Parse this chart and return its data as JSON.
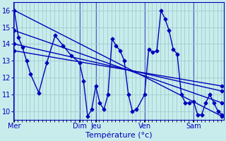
{
  "background_color": "#c8ecec",
  "grid_color": "#a0cccc",
  "line_color": "#0000bb",
  "marker": "D",
  "markersize": 2.5,
  "linewidth": 1.0,
  "xlabel": "Température (°c)",
  "ylim": [
    9.5,
    16.5
  ],
  "yticks": [
    10,
    11,
    12,
    13,
    14,
    15,
    16
  ],
  "xlim": [
    0,
    168
  ],
  "day_labels": [
    "Mer",
    "Dim",
    "Jeu",
    "Ven",
    "Sam"
  ],
  "day_positions": [
    1,
    97,
    121,
    193,
    265
  ],
  "minor_tick_step": 6,
  "temp_x": [
    1,
    7,
    13,
    19,
    25,
    37,
    49,
    61,
    73,
    85,
    97,
    103,
    109,
    115,
    121,
    127,
    133,
    139,
    145,
    151,
    157,
    163,
    169,
    175,
    181,
    193,
    199,
    205,
    211,
    217,
    223,
    229,
    235,
    241,
    247,
    253,
    259,
    265,
    271,
    277,
    283,
    289,
    295,
    301,
    307
  ],
  "temp_y": [
    16.0,
    14.4,
    13.8,
    13.0,
    12.2,
    11.1,
    12.9,
    14.5,
    13.9,
    13.3,
    12.9,
    11.8,
    9.7,
    10.1,
    11.5,
    10.5,
    10.1,
    11.0,
    14.3,
    13.9,
    13.6,
    13.0,
    11.0,
    10.0,
    10.1,
    11.0,
    13.7,
    13.5,
    13.6,
    16.0,
    15.5,
    14.8,
    13.7,
    13.4,
    11.0,
    10.5,
    10.5,
    10.6,
    9.8,
    9.8,
    10.5,
    11.0,
    10.5,
    10.0,
    9.8
  ],
  "trend_lines": [
    {
      "x": [
        1,
        307
      ],
      "y": [
        16.0,
        9.7
      ]
    },
    {
      "x": [
        1,
        307
      ],
      "y": [
        14.8,
        10.5
      ]
    },
    {
      "x": [
        1,
        307
      ],
      "y": [
        14.0,
        11.2
      ]
    },
    {
      "x": [
        1,
        307
      ],
      "y": [
        13.6,
        11.5
      ]
    }
  ]
}
